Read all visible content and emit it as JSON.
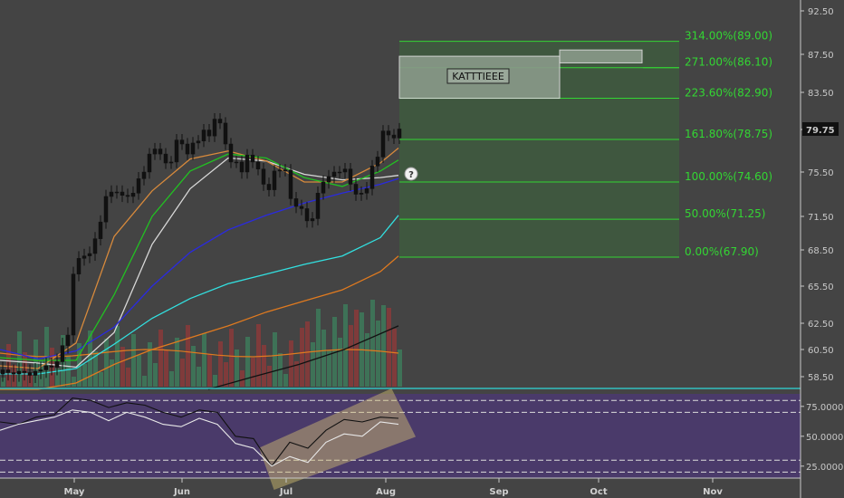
{
  "chart_data": [
    {
      "type": "candlestick",
      "title": "",
      "price_axis": {
        "ticks": [
          "92.50",
          "87.50",
          "83.50",
          "79.75",
          "75.50",
          "71.50",
          "68.50",
          "65.50",
          "62.50",
          "60.50",
          "58.50"
        ],
        "ylim": [
          57.5,
          93.5
        ],
        "last_price": "79.75"
      },
      "time_axis": {
        "months": [
          "May",
          "Jun",
          "Jul",
          "Aug",
          "Sep",
          "Oct",
          "Nov"
        ]
      },
      "price_series": {
        "x": [
          0,
          6,
          12,
          18,
          24,
          30,
          36,
          42,
          48,
          54,
          60,
          66,
          72,
          78,
          84,
          90,
          96,
          102,
          108,
          114,
          120,
          126,
          132,
          138,
          144,
          150,
          156,
          162,
          168,
          174,
          180,
          186,
          192,
          198,
          204,
          210,
          216,
          222,
          228,
          234,
          240,
          246,
          252,
          258,
          264,
          270,
          276,
          282,
          288,
          294,
          300,
          306,
          312,
          318,
          324,
          330,
          336,
          342,
          348,
          354,
          360,
          366,
          372,
          378,
          384,
          390,
          396,
          402,
          408,
          414,
          420,
          426,
          432,
          438
        ],
        "close": [
          59.0,
          58.8,
          58.7,
          58.9,
          58.8,
          58.6,
          58.9,
          59.0,
          59.3,
          59.2,
          59.6,
          60.8,
          61.6,
          66.5,
          67.8,
          68.0,
          68.2,
          69.5,
          71.0,
          73.3,
          73.7,
          73.7,
          73.4,
          73.3,
          73.6,
          74.9,
          75.5,
          77.3,
          77.8,
          77.3,
          76.4,
          76.5,
          78.7,
          78.3,
          77.3,
          78.4,
          78.6,
          79.7,
          79.1,
          80.8,
          80.4,
          78.3,
          76.5,
          76.5,
          75.5,
          77.2,
          76.5,
          75.8,
          74.4,
          73.9,
          75.6,
          75.7,
          75.7,
          73.1,
          72.4,
          72.2,
          71.1,
          71.3,
          73.6,
          74.6,
          75.1,
          75.5,
          75.5,
          75.8,
          74.4,
          73.5,
          73.6,
          74.0,
          76.1,
          77.0,
          79.6,
          79.2,
          78.9,
          79.8
        ]
      },
      "series": [
        {
          "color": "#d8d8d8",
          "x": [
            0,
            42,
            84,
            126,
            168,
            210,
            252,
            294,
            336,
            378,
            420,
            440
          ],
          "values": [
            59.7,
            59.5,
            59.2,
            61.8,
            69.0,
            74.0,
            76.9,
            76.6,
            75.3,
            74.8,
            75.0,
            75.2
          ]
        },
        {
          "color": "#2a2ae0",
          "x": [
            0,
            42,
            84,
            126,
            168,
            210,
            252,
            294,
            336,
            378,
            420,
            440
          ],
          "values": [
            60.5,
            59.8,
            60.4,
            62.2,
            65.5,
            68.3,
            70.3,
            71.6,
            72.7,
            73.6,
            74.4,
            74.9
          ]
        },
        {
          "color": "#32e0e0",
          "x": [
            0,
            42,
            84,
            126,
            168,
            210,
            252,
            294,
            336,
            378,
            420,
            440
          ],
          "values": [
            58.7,
            58.7,
            59.1,
            60.9,
            62.9,
            64.5,
            65.7,
            66.5,
            67.3,
            68.0,
            69.6,
            71.6
          ]
        },
        {
          "color": "#e07a1f",
          "x": [
            0,
            42,
            84,
            126,
            168,
            210,
            252,
            294,
            336,
            378,
            420,
            440
          ],
          "values": [
            57.5,
            57.5,
            58.0,
            59.4,
            60.5,
            61.4,
            62.3,
            63.4,
            64.3,
            65.2,
            66.7,
            68.0
          ]
        },
        {
          "color": "#d88a3c",
          "x": [
            0,
            42,
            84,
            126,
            168,
            210,
            252,
            294,
            336,
            378,
            420,
            440
          ],
          "values": [
            59.3,
            59.1,
            61.0,
            69.7,
            73.8,
            76.8,
            77.6,
            76.6,
            74.6,
            74.6,
            76.4,
            77.9
          ]
        },
        {
          "color": "#22c022",
          "x": [
            0,
            42,
            84,
            126,
            168,
            210,
            252,
            294,
            336,
            378,
            420,
            440
          ],
          "values": [
            59.9,
            59.7,
            59.7,
            64.8,
            71.5,
            75.6,
            77.3,
            76.9,
            75.0,
            74.2,
            75.6,
            76.7
          ]
        },
        {
          "color": "#111111",
          "x": [
            230,
            280,
            330,
            380,
            440
          ],
          "values": [
            57.3,
            58.5,
            59.4,
            60.5,
            62.3
          ]
        }
      ],
      "volume": {
        "bar_colors": [
          "#3d7a5a",
          "#8a3a3a"
        ],
        "average_color": "#e07a1f"
      },
      "annotations": [
        {
          "type": "label",
          "text": "KATTTIEEE"
        },
        {
          "type": "marker",
          "text": "?"
        }
      ]
    },
    {
      "type": "fibonacci",
      "levels": [
        {
          "label": "314.00%(89.00)",
          "value": 89.0
        },
        {
          "label": "271.00%(86.10)",
          "value": 86.1
        },
        {
          "label": "223.60%(82.90)",
          "value": 82.9
        },
        {
          "label": "161.80%(78.75)",
          "value": 78.75
        },
        {
          "label": "100.00%(74.60)",
          "value": 74.6
        },
        {
          "label": "50.00%(71.25)",
          "value": 71.25
        },
        {
          "label": "0.00%(67.90)",
          "value": 67.9
        }
      ],
      "line_color": "#33d633",
      "zone_color": "#3e5a3e"
    },
    {
      "type": "line",
      "title": "",
      "ticks": [
        "75.0000",
        "50.0000",
        "25.0000"
      ],
      "ylim": [
        15,
        90
      ],
      "guide_levels": [
        80,
        70,
        30,
        20
      ],
      "background": "#4a3a6a",
      "series": [
        {
          "color": "#111111",
          "x": [
            0,
            20,
            40,
            60,
            80,
            100,
            120,
            140,
            160,
            180,
            200,
            220,
            240,
            260,
            280,
            300,
            320,
            340,
            360,
            380,
            400,
            420,
            440
          ],
          "values": [
            62,
            60,
            66,
            68,
            82,
            80,
            74,
            78,
            76,
            70,
            66,
            72,
            70,
            50,
            48,
            25,
            45,
            40,
            55,
            64,
            62,
            66,
            65
          ]
        },
        {
          "color": "#e8e8e8",
          "x": [
            0,
            20,
            40,
            60,
            80,
            100,
            120,
            140,
            160,
            180,
            200,
            220,
            240,
            260,
            280,
            300,
            320,
            340,
            360,
            380,
            400,
            420,
            440
          ],
          "values": [
            55,
            60,
            63,
            66,
            72,
            70,
            63,
            70,
            66,
            60,
            58,
            65,
            60,
            44,
            40,
            25,
            33,
            28,
            45,
            52,
            50,
            62,
            60
          ]
        }
      ],
      "annotations": [
        {
          "type": "channel",
          "color": "#d6c272"
        }
      ]
    }
  ]
}
